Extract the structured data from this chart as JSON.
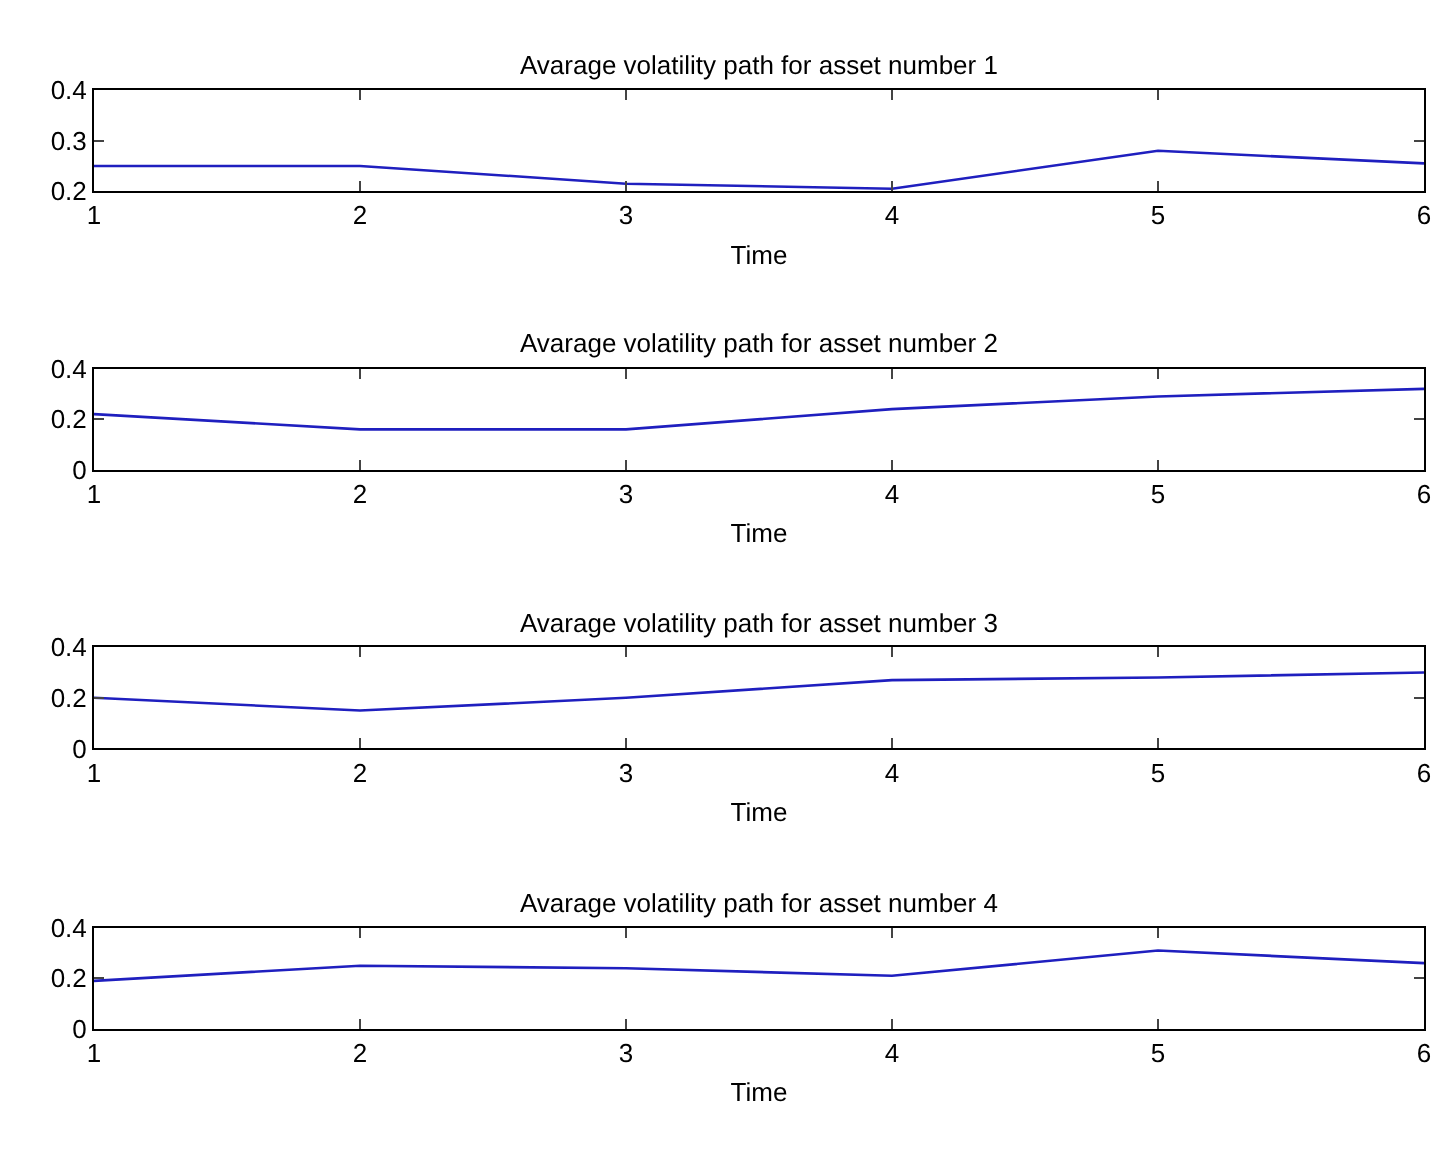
{
  "chart_data": [
    {
      "type": "line",
      "title": "Avarage volatility path for asset number 1",
      "xlabel": "Time",
      "x": [
        1,
        2,
        3,
        4,
        5,
        6
      ],
      "values": [
        0.25,
        0.25,
        0.215,
        0.205,
        0.28,
        0.255
      ],
      "color": "#1f1fbf",
      "xlim": [
        1,
        6
      ],
      "xticks": [
        1,
        2,
        3,
        4,
        5,
        6
      ],
      "ylim": [
        0.2,
        0.4
      ],
      "yticks": [
        0.2,
        0.3,
        0.4
      ]
    },
    {
      "type": "line",
      "title": "Avarage volatility path for asset number 2",
      "xlabel": "Time",
      "x": [
        1,
        2,
        3,
        4,
        5,
        6
      ],
      "values": [
        0.22,
        0.16,
        0.16,
        0.24,
        0.29,
        0.32
      ],
      "color": "#1f1fbf",
      "xlim": [
        1,
        6
      ],
      "xticks": [
        1,
        2,
        3,
        4,
        5,
        6
      ],
      "ylim": [
        0,
        0.4
      ],
      "yticks": [
        0,
        0.2,
        0.4
      ]
    },
    {
      "type": "line",
      "title": "Avarage volatility path for asset number 3",
      "xlabel": "Time",
      "x": [
        1,
        2,
        3,
        4,
        5,
        6
      ],
      "values": [
        0.2,
        0.15,
        0.2,
        0.27,
        0.28,
        0.3
      ],
      "color": "#1f1fbf",
      "xlim": [
        1,
        6
      ],
      "xticks": [
        1,
        2,
        3,
        4,
        5,
        6
      ],
      "ylim": [
        0,
        0.4
      ],
      "yticks": [
        0,
        0.2,
        0.4
      ]
    },
    {
      "type": "line",
      "title": "Avarage volatility path for asset number 4",
      "xlabel": "Time",
      "x": [
        1,
        2,
        3,
        4,
        5,
        6
      ],
      "values": [
        0.19,
        0.25,
        0.24,
        0.21,
        0.31,
        0.26
      ],
      "color": "#1f1fbf",
      "xlim": [
        1,
        6
      ],
      "xticks": [
        1,
        2,
        3,
        4,
        5,
        6
      ],
      "ylim": [
        0,
        0.4
      ],
      "yticks": [
        0,
        0.2,
        0.4
      ]
    }
  ]
}
